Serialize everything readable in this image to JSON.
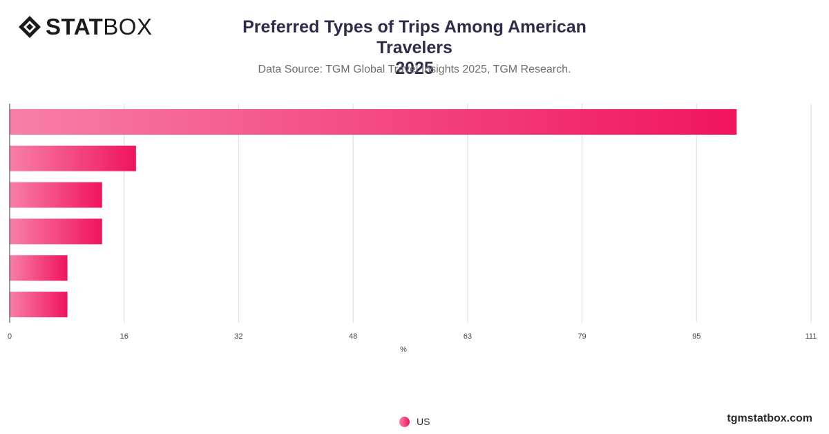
{
  "header": {
    "brand_bold": "STAT",
    "brand_light": "BOX",
    "title_line1": "Preferred Types of Trips Among American Travelers",
    "title_line2": "2025",
    "subtitle": "Data Source: TGM Global Travel Insights 2025, TGM Research."
  },
  "legend": {
    "label": "US"
  },
  "footer": {
    "site": "tgmstatbox.com"
  },
  "colors": {
    "bar_start": "#f77fa8",
    "bar_end": "#f0145f",
    "title": "#2f2c4b"
  },
  "chart_data": {
    "type": "bar",
    "orientation": "horizontal",
    "categories": [
      "",
      "",
      "",
      "",
      "",
      ""
    ],
    "series": [
      {
        "name": "US",
        "values": [
          100.7,
          17.5,
          12.8,
          12.8,
          8.0,
          8.0
        ]
      }
    ],
    "x_ticks": [
      "0",
      "16",
      "32",
      "48",
      "63",
      "79",
      "95",
      "111"
    ],
    "xlabel": "%",
    "xlim": [
      0,
      111
    ],
    "grid": true,
    "legend_position": "bottom"
  }
}
